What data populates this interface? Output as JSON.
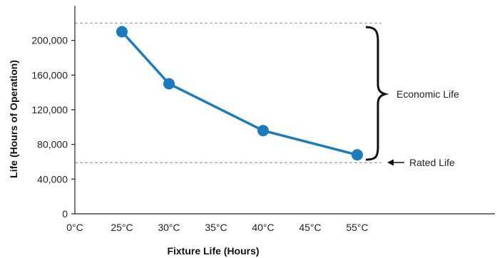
{
  "chart_data": {
    "type": "line",
    "title": "",
    "xlabel": "Fixture Life (Hours)",
    "ylabel": "Life (Hours of Operation)",
    "x_ticks": [
      "0°C",
      "25°C",
      "30°C",
      "35°C",
      "40°C",
      "45°C",
      "55°C"
    ],
    "y_ticks": [
      "0",
      "40,000",
      "80,000",
      "120,000",
      "160,000",
      "200,000"
    ],
    "ylim": [
      0,
      240000
    ],
    "grid": false,
    "series": [
      {
        "categories": [
          "25°C",
          "30°C",
          "40°C",
          "55°C"
        ],
        "values": [
          210000,
          150000,
          96000,
          68000
        ],
        "color": "#1b7bc0"
      }
    ],
    "reference_lines": [
      {
        "y": 220000,
        "style": "dashed"
      },
      {
        "y": 59000,
        "style": "dashed"
      }
    ],
    "annotations": {
      "economic_life": "Economic Life",
      "rated_life": "Rated Life"
    },
    "colors": {
      "series": "#1b7bc0",
      "reference": "#999999",
      "axis": "#222222"
    }
  }
}
